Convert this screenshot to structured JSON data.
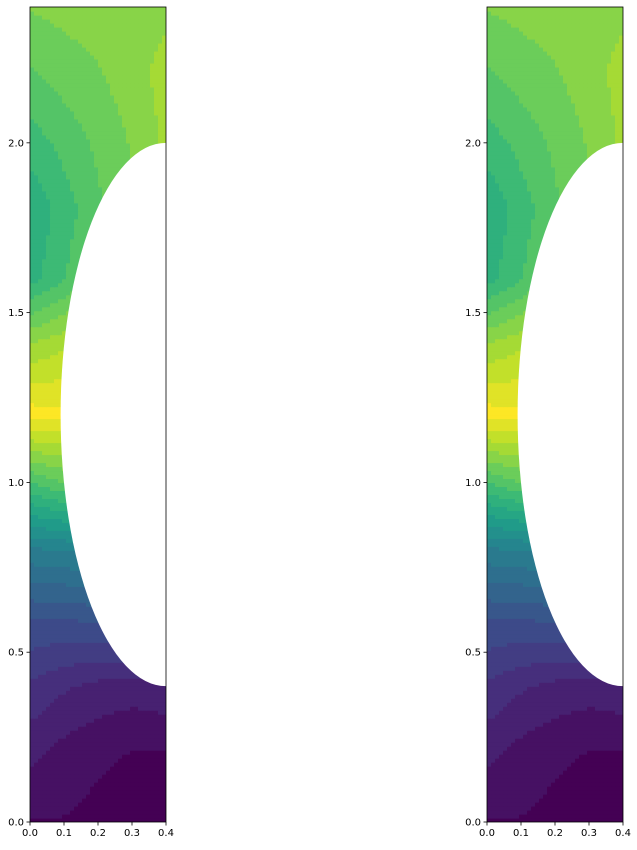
{
  "chart_data": [
    {
      "type": "heatmap",
      "subtype": "filled-contour",
      "colormap": "viridis",
      "colormap_stops": [
        "#440154",
        "#482878",
        "#3e4989",
        "#31688e",
        "#26828e",
        "#1f9e89",
        "#35b779",
        "#6ece58",
        "#b5de2b",
        "#fde725"
      ],
      "xlim": [
        0,
        0.4
      ],
      "ylim": [
        0,
        2.4
      ],
      "xticks": [
        "0.0",
        "0.1",
        "0.2",
        "0.3",
        "0.4"
      ],
      "yticks": [
        "0.0",
        "0.5",
        "1.0",
        "1.5",
        "2.0"
      ],
      "xtick_values": [
        0,
        0.1,
        0.2,
        0.3,
        0.4
      ],
      "ytick_values": [
        0,
        0.5,
        1.0,
        1.5,
        2.0
      ],
      "grid": false,
      "legend": "none",
      "masked_region": {
        "shape": "ellipse",
        "center": [
          0.4,
          1.2
        ],
        "radii": [
          0.31,
          0.8
        ]
      },
      "field_samples": {
        "x": [
          0.0,
          0.1,
          0.2,
          0.3,
          0.4
        ],
        "y": [
          0.0,
          0.2,
          0.4,
          0.6,
          0.8,
          1.0,
          1.2,
          1.4,
          1.6,
          1.8,
          2.0,
          2.2,
          2.4
        ],
        "values": [
          [
            0.02,
            0.02,
            0.01,
            0.0,
            0.0
          ],
          [
            0.08,
            0.05,
            0.03,
            0.02,
            0.02
          ],
          [
            0.15,
            0.12,
            0.1,
            0.09,
            0.1
          ],
          [
            0.25,
            0.25,
            0.26,
            0.27,
            0.27
          ],
          [
            0.42,
            0.43,
            0.45,
            0.47,
            0.48
          ],
          [
            0.7,
            0.75,
            0.78,
            0.8,
            0.8
          ],
          [
            1.0,
            0.99,
            0.96,
            0.95,
            0.95
          ],
          [
            0.85,
            0.88,
            0.92,
            0.95,
            0.95
          ],
          [
            0.64,
            0.7,
            0.78,
            0.85,
            0.85
          ],
          [
            0.62,
            0.68,
            0.74,
            0.8,
            0.86
          ],
          [
            0.68,
            0.72,
            0.76,
            0.8,
            0.85
          ],
          [
            0.74,
            0.77,
            0.79,
            0.82,
            0.86
          ],
          [
            0.8,
            0.81,
            0.82,
            0.82,
            0.83
          ]
        ]
      }
    },
    {
      "type": "heatmap",
      "subtype": "filled-contour",
      "colormap": "viridis",
      "colormap_stops": [
        "#440154",
        "#482878",
        "#3e4989",
        "#31688e",
        "#26828e",
        "#1f9e89",
        "#35b779",
        "#6ece58",
        "#b5de2b",
        "#fde725"
      ],
      "xlim": [
        0,
        0.4
      ],
      "ylim": [
        0,
        2.4
      ],
      "xticks": [
        "0.0",
        "0.1",
        "0.2",
        "0.3",
        "0.4"
      ],
      "yticks": [
        "0.0",
        "0.5",
        "1.0",
        "1.5",
        "2.0"
      ],
      "xtick_values": [
        0,
        0.1,
        0.2,
        0.3,
        0.4
      ],
      "ytick_values": [
        0,
        0.5,
        1.0,
        1.5,
        2.0
      ],
      "grid": false,
      "legend": "none",
      "masked_region": {
        "shape": "ellipse",
        "center": [
          0.4,
          1.2
        ],
        "radii": [
          0.31,
          0.8
        ]
      },
      "field_samples": {
        "x": [
          0.0,
          0.1,
          0.2,
          0.3,
          0.4
        ],
        "y": [
          0.0,
          0.2,
          0.4,
          0.6,
          0.8,
          1.0,
          1.2,
          1.4,
          1.6,
          1.8,
          2.0,
          2.2,
          2.4
        ],
        "values": [
          [
            0.02,
            0.02,
            0.01,
            0.0,
            0.0
          ],
          [
            0.08,
            0.05,
            0.03,
            0.02,
            0.02
          ],
          [
            0.15,
            0.12,
            0.1,
            0.09,
            0.1
          ],
          [
            0.25,
            0.25,
            0.26,
            0.27,
            0.27
          ],
          [
            0.42,
            0.43,
            0.45,
            0.47,
            0.48
          ],
          [
            0.7,
            0.75,
            0.78,
            0.8,
            0.8
          ],
          [
            1.0,
            0.99,
            0.96,
            0.95,
            0.95
          ],
          [
            0.85,
            0.88,
            0.92,
            0.95,
            0.95
          ],
          [
            0.64,
            0.7,
            0.78,
            0.85,
            0.85
          ],
          [
            0.62,
            0.68,
            0.74,
            0.8,
            0.86
          ],
          [
            0.68,
            0.72,
            0.76,
            0.8,
            0.85
          ],
          [
            0.74,
            0.77,
            0.79,
            0.82,
            0.86
          ],
          [
            0.8,
            0.81,
            0.82,
            0.82,
            0.83
          ]
        ]
      }
    }
  ]
}
